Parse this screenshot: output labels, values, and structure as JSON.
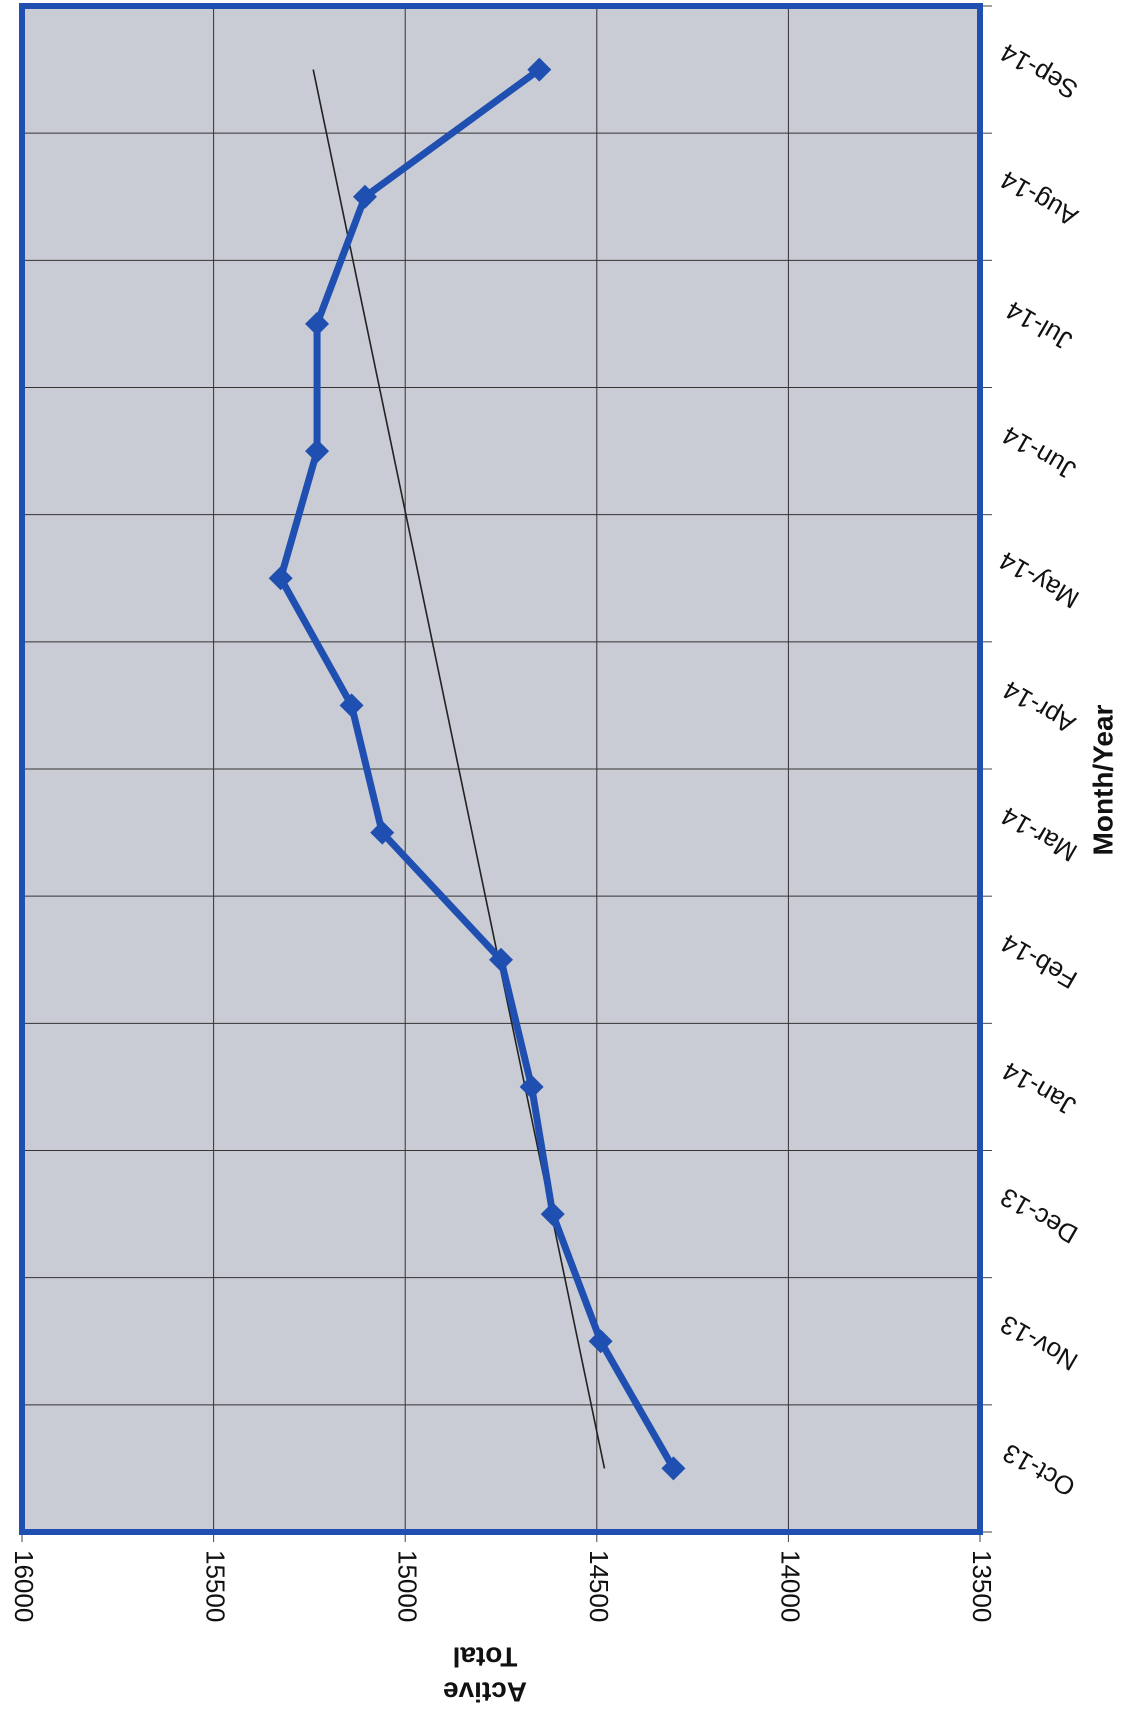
{
  "chart_data": {
    "type": "line",
    "title": "",
    "xlabel": "Month/Year",
    "ylabel": "Active Total",
    "ylabel_lines": [
      "Active",
      "Total"
    ],
    "categories": [
      "Oct-13",
      "Nov-13",
      "Dec-13",
      "Jan-14",
      "Feb-14",
      "Mar-14",
      "Apr-14",
      "May-14",
      "Jun-14",
      "Jul-14",
      "Aug-14",
      "Sep-14"
    ],
    "series": [
      {
        "name": "",
        "values": [
          14300,
          14490,
          14615,
          14670,
          14750,
          15060,
          15140,
          15325,
          15230,
          15230,
          15105,
          14650
        ]
      }
    ],
    "trendline": {
      "start": 14480,
      "end": 15240
    },
    "ylim": [
      13500,
      16000
    ],
    "yticks": [
      16000,
      15500,
      15000,
      14500,
      14000,
      13500
    ],
    "grid": true,
    "legend": "none",
    "orientation": "rotated-90-clockwise",
    "colors": {
      "series": "#1f4fb0",
      "frame": "#1f4fb0",
      "plot_background": "#c9ccd5",
      "grid": "#333333",
      "trendline": "#222222"
    }
  }
}
